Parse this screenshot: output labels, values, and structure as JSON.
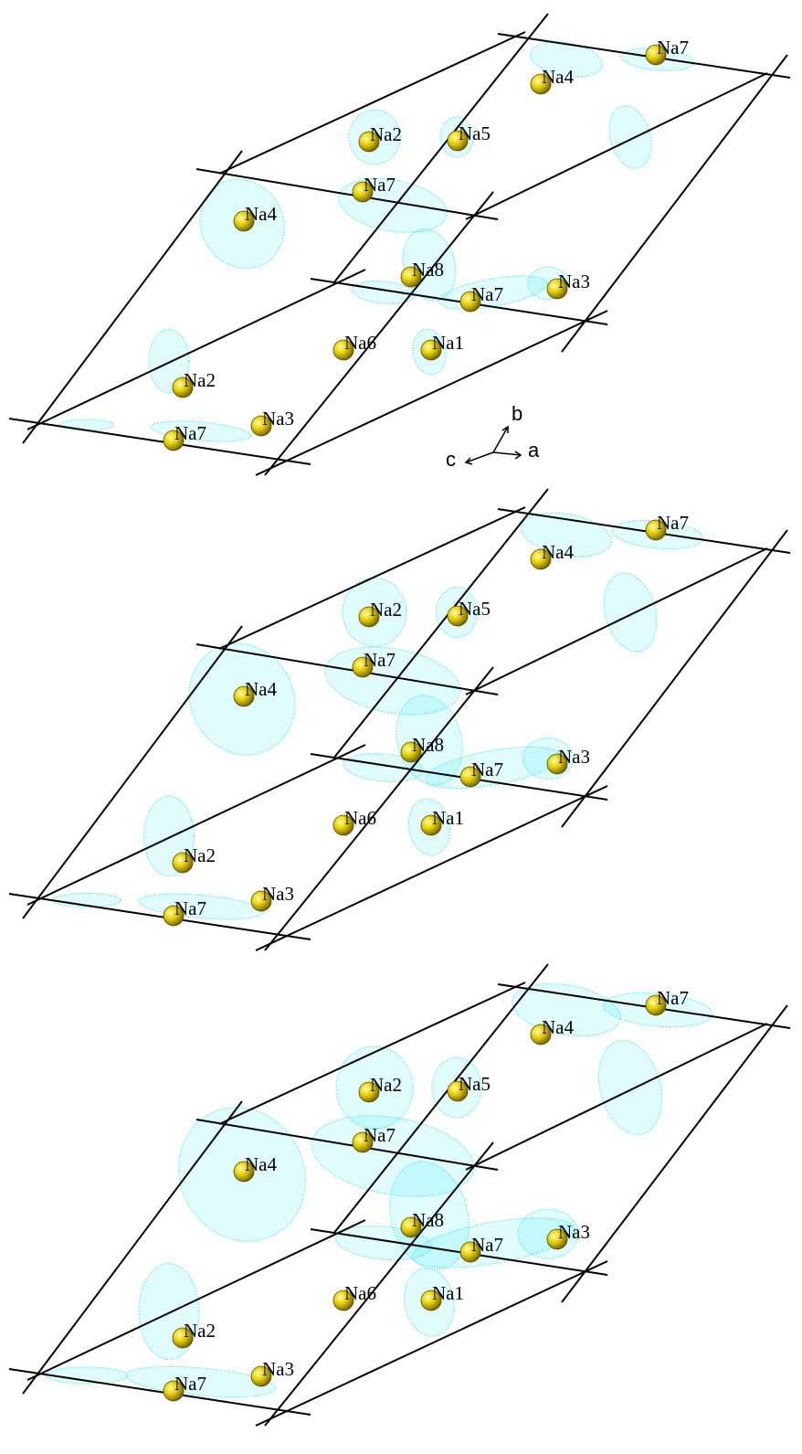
{
  "panels": [
    {
      "atoms": [
        "Na7",
        "Na4",
        "Na2",
        "Na5",
        "Na7",
        "Na4",
        "Na8",
        "Na7",
        "Na3",
        "Na6",
        "Na1",
        "Na2",
        "Na7",
        "Na3"
      ]
    },
    {
      "atoms": [
        "Na7",
        "Na4",
        "Na2",
        "Na5",
        "Na7",
        "Na4",
        "Na8",
        "Na7",
        "Na3",
        "Na6",
        "Na1",
        "Na2",
        "Na7",
        "Na3"
      ]
    },
    {
      "atoms": [
        "Na7",
        "Na4",
        "Na2",
        "Na5",
        "Na7",
        "Na4",
        "Na8",
        "Na7",
        "Na3",
        "Na6",
        "Na1",
        "Na2",
        "Na7",
        "Na3"
      ]
    }
  ],
  "axes": {
    "b": "b",
    "c": "c",
    "a": "a"
  }
}
